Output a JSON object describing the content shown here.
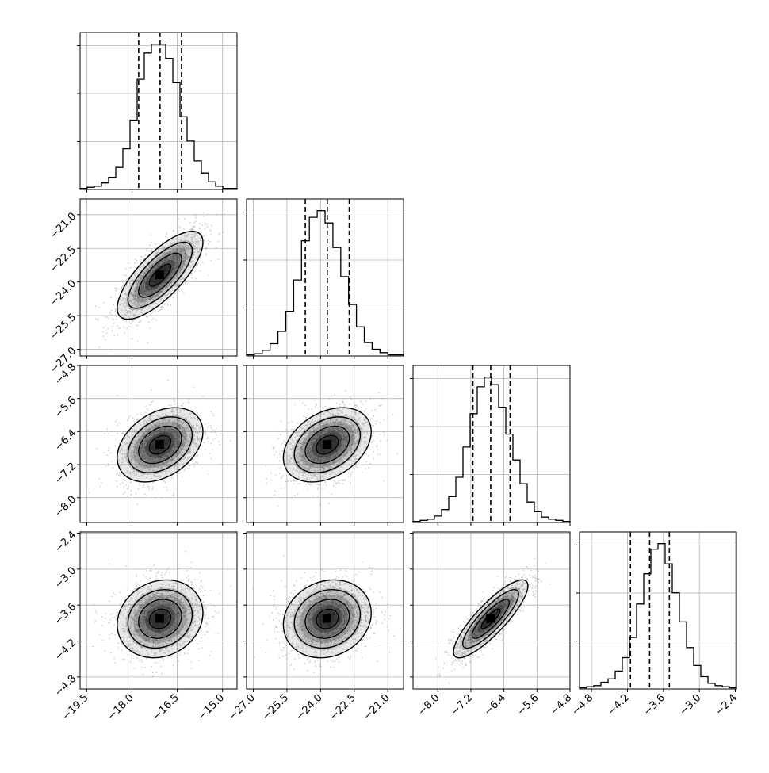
{
  "chart_data": {
    "type": "corner",
    "params": [
      {
        "ticks": [
          -19.5,
          -18.0,
          -16.5,
          -15.0
        ],
        "tick_labels": [
          "−19.5",
          "−18.0",
          "−16.5",
          "−15.0"
        ],
        "range": [
          -19.72,
          -14.52
        ],
        "quantiles": [
          -17.78,
          -17.07,
          -16.36
        ]
      },
      {
        "ticks": [
          -27.0,
          -25.5,
          -24.0,
          -22.5,
          -21.0
        ],
        "tick_labels": [
          "−27.0",
          "−25.5",
          "−24.0",
          "−22.5",
          "−21.0"
        ],
        "range": [
          -27.3,
          -20.3
        ],
        "quantiles": [
          -24.68,
          -23.7,
          -22.72
        ]
      },
      {
        "ticks": [
          -8.0,
          -7.2,
          -6.4,
          -5.6,
          -4.8
        ],
        "tick_labels": [
          "−8.0",
          "−7.2",
          "−6.4",
          "−5.6",
          "−4.8"
        ],
        "range": [
          -8.6,
          -4.8
        ],
        "quantiles": [
          -7.15,
          -6.72,
          -6.25
        ]
      },
      {
        "ticks": [
          -4.8,
          -4.2,
          -3.6,
          -3.0,
          -2.4
        ],
        "tick_labels": [
          "−4.8",
          "−4.2",
          "−3.6",
          "−3.0",
          "−2.4"
        ],
        "range": [
          -5.0,
          -2.38
        ],
        "quantiles": [
          -4.15,
          -3.83,
          -3.5
        ]
      }
    ],
    "histograms": [
      {
        "counts": [
          1,
          2,
          3,
          6,
          11,
          20,
          37,
          63,
          100,
          124,
          132,
          132,
          119,
          97,
          66,
          44,
          26,
          15,
          7,
          3,
          1,
          1
        ]
      },
      {
        "counts": [
          1,
          2,
          5,
          11,
          22,
          40,
          68,
          103,
          124,
          130,
          119,
          97,
          71,
          46,
          26,
          12,
          6,
          3,
          1,
          1
        ]
      },
      {
        "counts": [
          1,
          2,
          3,
          6,
          12,
          24,
          42,
          70,
          101,
          126,
          135,
          128,
          107,
          82,
          58,
          36,
          19,
          10,
          5,
          3,
          2,
          1
        ]
      },
      {
        "counts": [
          1,
          2,
          3,
          6,
          9,
          16,
          28,
          46,
          76,
          103,
          125,
          130,
          112,
          86,
          60,
          37,
          21,
          11,
          5,
          3,
          2,
          1
        ]
      }
    ],
    "correlations": {
      "1-0": 0.75,
      "2-0": 0.35,
      "2-1": 0.35,
      "3-0": 0.15,
      "3-1": 0.15,
      "3-2": 0.85
    },
    "contour_levels_sigma": [
      0.5,
      1.0,
      1.5,
      2.0
    ],
    "grid": true
  }
}
